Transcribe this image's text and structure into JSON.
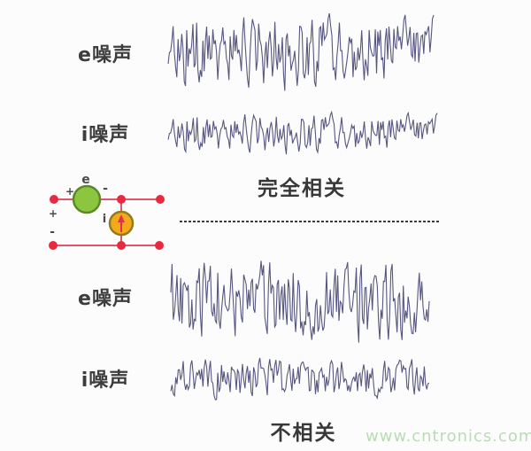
{
  "labels": {
    "top_e": "e噪声",
    "top_i": "i噪声",
    "bottom_e": "e噪声",
    "bottom_i": "i噪声",
    "correlated": "完全相关",
    "uncorrelated": "不相关"
  },
  "watermark": {
    "text": "www.cntronics.com",
    "color": "#b9dcb4"
  },
  "circuit": {
    "e_label": "e",
    "i_label": "i",
    "plus_top": "+",
    "minus_top": "-",
    "plus_left": "+",
    "minus_left": "-",
    "wire_color": "#e0556a",
    "node_color": "#e8293f",
    "e_source": {
      "fill": "#8cc63e",
      "stroke": "#5a8a28"
    },
    "i_source": {
      "fill": "#f5a81c",
      "stroke": "#8f7d1e",
      "arrow_color": "#e0304a"
    }
  },
  "waveforms": {
    "color": "#565680",
    "items": [
      {
        "id": "wave-top-e",
        "seed": 1012,
        "points": 215,
        "amplitude": 46
      },
      {
        "id": "wave-top-i",
        "seed": 1012,
        "points": 215,
        "amplitude": 25
      },
      {
        "id": "wave-bottom-e",
        "seed": 7077,
        "points": 210,
        "amplitude": 50
      },
      {
        "id": "wave-bottom-i",
        "seed": 3091,
        "points": 210,
        "amplitude": 25
      }
    ]
  }
}
